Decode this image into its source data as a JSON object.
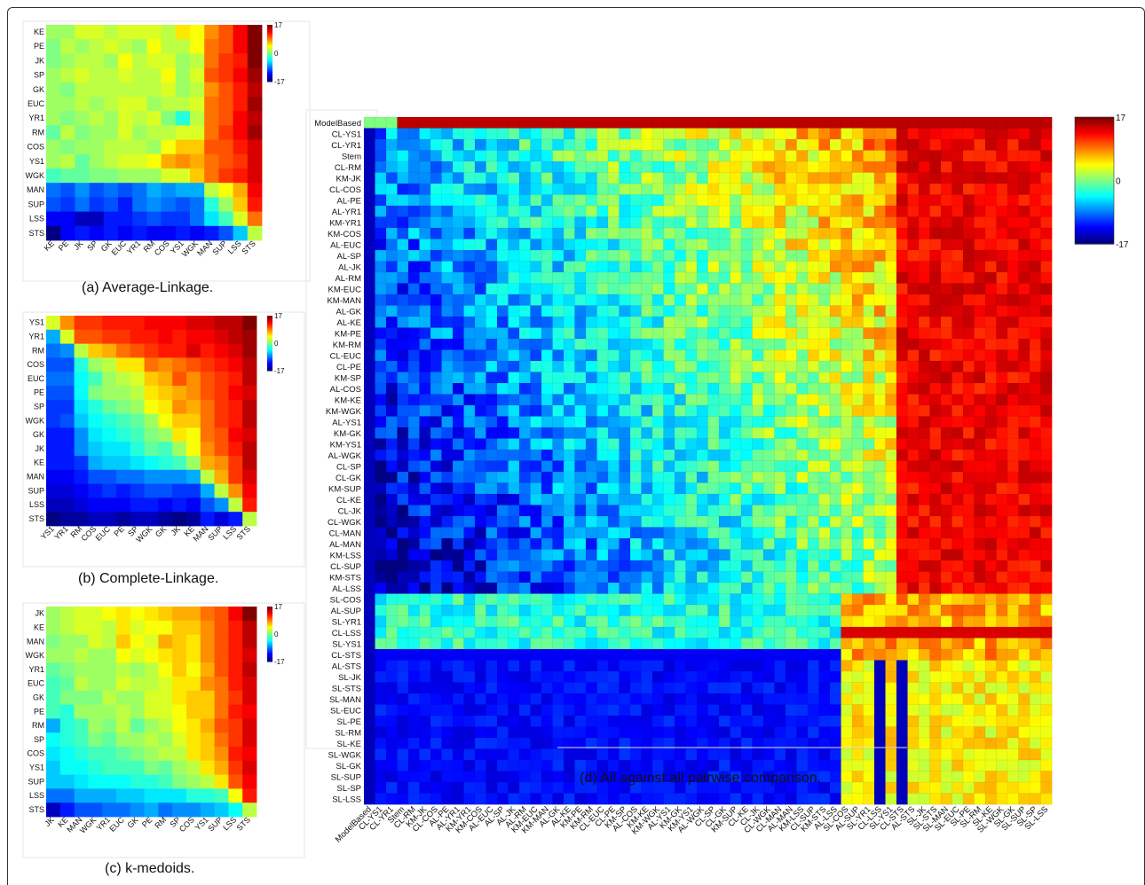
{
  "chart_data": [
    {
      "type": "heatmap",
      "caption": "(a) Average-Linkage.",
      "labels": [
        "KE",
        "PE",
        "JK",
        "SP",
        "GK",
        "EUC",
        "YR1",
        "RM",
        "COS",
        "YS1",
        "WGK",
        "MAN",
        "SUP",
        "LSS",
        "STS"
      ],
      "colorbar_ticks": [
        "17",
        "0",
        "-17"
      ],
      "vmin": -17,
      "vmax": 17,
      "values": [
        [
          1,
          1,
          3,
          3,
          2,
          3,
          3,
          3,
          2,
          5,
          4,
          8,
          10,
          13,
          17
        ],
        [
          0,
          2,
          1,
          2,
          3,
          2,
          1,
          4,
          2,
          2,
          4,
          9,
          10,
          13,
          17
        ],
        [
          0,
          1,
          2,
          2,
          1,
          4,
          2,
          3,
          3,
          1,
          2,
          9,
          11,
          12,
          17
        ],
        [
          1,
          2,
          3,
          2,
          2,
          3,
          2,
          2,
          4,
          1,
          3,
          10,
          11,
          13,
          16
        ],
        [
          1,
          0,
          2,
          2,
          2,
          2,
          2,
          2,
          3,
          1,
          2,
          8,
          10,
          12,
          15
        ],
        [
          1,
          1,
          2,
          1,
          2,
          3,
          3,
          1,
          2,
          2,
          3,
          9,
          10,
          12,
          16
        ],
        [
          1,
          0,
          1,
          2,
          1,
          3,
          2,
          3,
          0,
          -3,
          2,
          9,
          10,
          13,
          15
        ],
        [
          -1,
          2,
          0,
          1,
          1,
          3,
          1,
          2,
          2,
          3,
          3,
          9,
          11,
          13,
          16
        ],
        [
          1,
          0,
          1,
          1,
          2,
          2,
          2,
          1,
          4,
          6,
          6,
          10,
          10,
          12,
          14
        ],
        [
          1,
          2,
          -1,
          1,
          2,
          3,
          3,
          4,
          7,
          8,
          7,
          9,
          10,
          11,
          14
        ],
        [
          -2,
          -1,
          -1,
          0,
          0,
          1,
          1,
          1,
          3,
          3,
          6,
          9,
          11,
          12,
          14
        ],
        [
          -9,
          -10,
          -8,
          -10,
          -9,
          -10,
          -9,
          -7,
          -8,
          -7,
          -7,
          2,
          4,
          7,
          13
        ],
        [
          -10,
          -11,
          -9,
          -11,
          -10,
          -12,
          -9,
          -8,
          -9,
          -10,
          -9,
          -3,
          1,
          6,
          12
        ],
        [
          -13,
          -13,
          -15,
          -15,
          -12,
          -12,
          -11,
          -10,
          -11,
          -11,
          -9,
          -5,
          -2,
          3,
          9
        ],
        [
          -17,
          -13,
          -12,
          -13,
          -12,
          -13,
          -12,
          -13,
          -13,
          -12,
          -13,
          -12,
          -10,
          -6,
          2
        ]
      ]
    },
    {
      "type": "heatmap",
      "caption": "(b) Complete-Linkage.",
      "labels": [
        "YS1",
        "YR1",
        "RM",
        "COS",
        "EUC",
        "PE",
        "SP",
        "WGK",
        "GK",
        "JK",
        "KE",
        "MAN",
        "SUP",
        "LSS",
        "STS"
      ],
      "colorbar_ticks": [
        "17",
        "0",
        "-17"
      ],
      "vmin": -17,
      "vmax": 17,
      "values": [
        [
          3,
          8,
          11,
          11,
          12,
          12,
          12,
          13,
          13,
          13,
          14,
          14,
          15,
          15,
          17
        ],
        [
          -7,
          3,
          10,
          10,
          11,
          11,
          12,
          12,
          13,
          12,
          13,
          13,
          14,
          15,
          16
        ],
        [
          -9,
          -8,
          2,
          6,
          7,
          9,
          10,
          11,
          12,
          12,
          14,
          12,
          13,
          14,
          16
        ],
        [
          -10,
          -10,
          -3,
          1,
          2,
          5,
          5,
          9,
          8,
          9,
          10,
          11,
          12,
          13,
          15
        ],
        [
          -9,
          -9,
          -4,
          -2,
          1,
          2,
          3,
          6,
          7,
          10,
          8,
          10,
          11,
          12,
          15
        ],
        [
          -10,
          -10,
          -4,
          0,
          1,
          1,
          2,
          5,
          6,
          7,
          8,
          10,
          11,
          13,
          14
        ],
        [
          -11,
          -11,
          -5,
          -3,
          -1,
          0,
          1,
          4,
          5,
          8,
          7,
          9,
          11,
          12,
          15
        ],
        [
          -11,
          -10,
          -6,
          -4,
          -3,
          -2,
          -1,
          1,
          4,
          6,
          6,
          9,
          11,
          12,
          15
        ],
        [
          -12,
          -12,
          -8,
          -5,
          -4,
          -3,
          -2,
          0,
          1,
          5,
          4,
          9,
          10,
          13,
          14
        ],
        [
          -12,
          -12,
          -8,
          -6,
          -5,
          -5,
          -3,
          -1,
          -2,
          1,
          4,
          8,
          10,
          12,
          15
        ],
        [
          -12,
          -12,
          -11,
          -7,
          -6,
          -6,
          -5,
          -4,
          -3,
          -2,
          1,
          7,
          8,
          11,
          15
        ],
        [
          -13,
          -13,
          -12,
          -10,
          -10,
          -9,
          -9,
          -8,
          -8,
          -8,
          -7,
          2,
          7,
          11,
          14
        ],
        [
          -14,
          -14,
          -13,
          -12,
          -11,
          -12,
          -11,
          -10,
          -10,
          -11,
          -11,
          -7,
          2,
          8,
          13
        ],
        [
          -15,
          -15,
          -14,
          -13,
          -13,
          -13,
          -12,
          -12,
          -13,
          -12,
          -13,
          -10,
          -8,
          2,
          12
        ],
        [
          -17,
          -16,
          -16,
          -15,
          -15,
          -16,
          -15,
          -15,
          -16,
          -17,
          -16,
          -12,
          -14,
          -12,
          2
        ]
      ]
    },
    {
      "type": "heatmap",
      "caption": "(c) k-medoids.",
      "labels": [
        "JK",
        "KE",
        "MAN",
        "WGK",
        "YR1",
        "EUC",
        "GK",
        "PE",
        "RM",
        "SP",
        "COS",
        "YS1",
        "SUP",
        "LSS",
        "STS"
      ],
      "colorbar_ticks": [
        "17",
        "0",
        "-17"
      ],
      "vmin": -17,
      "vmax": 17,
      "values": [
        [
          1,
          2,
          3,
          3,
          4,
          5,
          4,
          5,
          6,
          7,
          7,
          9,
          10,
          13,
          17
        ],
        [
          1,
          2,
          3,
          3,
          2,
          5,
          3,
          4,
          4,
          6,
          6,
          8,
          10,
          12,
          15
        ],
        [
          0,
          1,
          1,
          3,
          2,
          6,
          4,
          3,
          7,
          6,
          5,
          8,
          10,
          12,
          15
        ],
        [
          1,
          1,
          2,
          1,
          1,
          4,
          3,
          4,
          5,
          6,
          5,
          8,
          10,
          12,
          14
        ],
        [
          -1,
          0,
          1,
          1,
          1,
          2,
          1,
          2,
          4,
          6,
          4,
          7,
          10,
          12,
          15
        ],
        [
          -2,
          -1,
          2,
          1,
          1,
          3,
          2,
          2,
          3,
          5,
          5,
          8,
          9,
          12,
          14
        ],
        [
          -2,
          0,
          0,
          0,
          2,
          1,
          1,
          3,
          3,
          5,
          6,
          6,
          9,
          11,
          14
        ],
        [
          -2,
          -3,
          1,
          1,
          1,
          2,
          1,
          3,
          3,
          4,
          6,
          6,
          9,
          12,
          13
        ],
        [
          -7,
          -3,
          -2,
          1,
          0,
          2,
          -1,
          1,
          2,
          4,
          5,
          7,
          10,
          11,
          14
        ],
        [
          -4,
          -3,
          -2,
          0,
          -1,
          1,
          1,
          2,
          1,
          3,
          5,
          6,
          9,
          11,
          14
        ],
        [
          -5,
          -4,
          -3,
          -2,
          -2,
          -1,
          0,
          1,
          2,
          2,
          5,
          6,
          8,
          12,
          13
        ],
        [
          -6,
          -4,
          -4,
          -3,
          -2,
          -2,
          -2,
          0,
          -1,
          1,
          2,
          5,
          7,
          11,
          14
        ],
        [
          -6,
          -6,
          -5,
          -4,
          -4,
          -4,
          -3,
          -3,
          -2,
          0,
          1,
          2,
          5,
          10,
          13
        ],
        [
          -9,
          -9,
          -7,
          -7,
          -7,
          -6,
          -6,
          -5,
          -5,
          -5,
          -3,
          -3,
          -2,
          4,
          12
        ],
        [
          -15,
          -12,
          -10,
          -10,
          -9,
          -9,
          -8,
          -7,
          -9,
          -8,
          -8,
          -7,
          -6,
          -4,
          2
        ]
      ]
    },
    {
      "type": "heatmap",
      "caption": "(d) All against all pairwise comparison.",
      "labels": [
        "ModelBased",
        "CL-YS1",
        "CL-YR1",
        "Stem",
        "CL-RM",
        "KM-JK",
        "CL-COS",
        "AL-PE",
        "AL-YR1",
        "KM-YR1",
        "KM-COS",
        "AL-EUC",
        "AL-SP",
        "AL-JK",
        "AL-RM",
        "KM-EUC",
        "KM-MAN",
        "AL-GK",
        "AL-KE",
        "KM-PE",
        "KM-RM",
        "CL-EUC",
        "CL-PE",
        "KM-SP",
        "AL-COS",
        "KM-KE",
        "KM-WGK",
        "AL-YS1",
        "KM-GK",
        "KM-YS1",
        "AL-WGK",
        "CL-SP",
        "CL-GK",
        "KM-SUP",
        "CL-KE",
        "CL-JK",
        "CL-WGK",
        "CL-MAN",
        "AL-MAN",
        "KM-LSS",
        "CL-SUP",
        "KM-STS",
        "AL-LSS",
        "SL-COS",
        "AL-SUP",
        "SL-YR1",
        "CL-LSS",
        "SL-YS1",
        "CL-STS",
        "AL-STS",
        "SL-JK",
        "SL-STS",
        "SL-MAN",
        "SL-EUC",
        "SL-PE",
        "SL-RM",
        "SL-KE",
        "SL-WGK",
        "SL-GK",
        "SL-SUP",
        "SL-SP",
        "SL-LSS"
      ],
      "colorbar_ticks": [
        "17",
        "0",
        "-17"
      ],
      "vmin": -17,
      "vmax": 17,
      "rows_description": "values not individually labeled; pattern from low-left to high-right"
    }
  ]
}
